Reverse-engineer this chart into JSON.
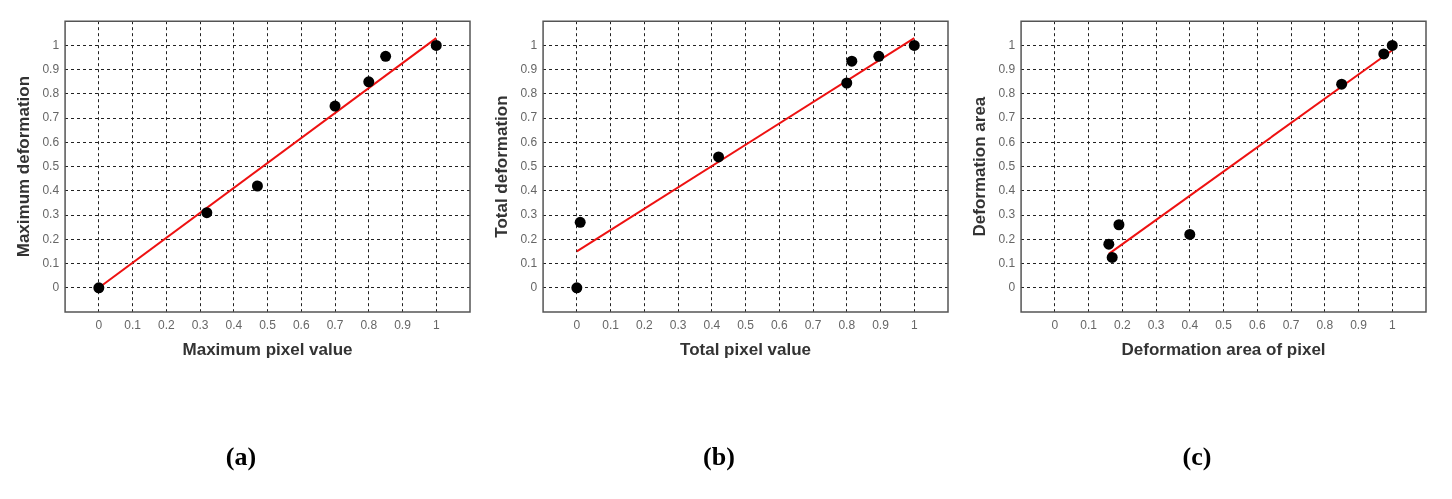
{
  "chart_data": [
    {
      "type": "scatter",
      "title": "(a)",
      "xlabel": "Maximum pixel value",
      "ylabel": "Maximum deformation",
      "xlim": [
        -0.1,
        1.1
      ],
      "ylim": [
        -0.1,
        1.1
      ],
      "xticks": [
        0,
        0.1,
        0.2,
        0.3,
        0.4,
        0.5,
        0.6,
        0.7,
        0.8,
        0.9,
        1
      ],
      "yticks": [
        0,
        0.1,
        0.2,
        0.3,
        0.4,
        0.5,
        0.6,
        0.7,
        0.8,
        0.9,
        1
      ],
      "grid": true,
      "legend": false,
      "series": [
        {
          "color": "#000000",
          "marker": "circle",
          "x": [
            0,
            0.32,
            0.47,
            0.7,
            0.8,
            0.85,
            1
          ],
          "values": [
            0,
            0.31,
            0.42,
            0.75,
            0.85,
            0.955,
            1
          ]
        },
        {
          "type": "line",
          "color": "#ee1111",
          "marker": "none",
          "line_style": "solid",
          "x": [
            0,
            1
          ],
          "values": [
            0,
            1.03
          ]
        }
      ]
    },
    {
      "type": "scatter",
      "title": "(b)",
      "xlabel": "Total pixel value",
      "ylabel": "Total deformation",
      "xlim": [
        -0.1,
        1.1
      ],
      "ylim": [
        -0.1,
        1.1
      ],
      "xticks": [
        0,
        0.1,
        0.2,
        0.3,
        0.4,
        0.5,
        0.6,
        0.7,
        0.8,
        0.9,
        1
      ],
      "yticks": [
        0,
        0.1,
        0.2,
        0.3,
        0.4,
        0.5,
        0.6,
        0.7,
        0.8,
        0.9,
        1
      ],
      "grid": true,
      "legend": false,
      "series": [
        {
          "color": "#000000",
          "marker": "circle",
          "x": [
            0,
            0.01,
            0.42,
            0.8,
            0.815,
            0.895,
            1
          ],
          "values": [
            0,
            0.27,
            0.54,
            0.845,
            0.935,
            0.955,
            1
          ]
        },
        {
          "type": "line",
          "color": "#ee1111",
          "marker": "none",
          "line_style": "solid",
          "x": [
            0,
            1
          ],
          "values": [
            0.15,
            1.03
          ]
        }
      ]
    },
    {
      "type": "scatter",
      "title": "(c)",
      "xlabel": "Deformation area of pixel",
      "ylabel": "Deformation area",
      "xlim": [
        -0.1,
        1.1
      ],
      "ylim": [
        -0.1,
        1.1
      ],
      "xticks": [
        0,
        0.1,
        0.2,
        0.3,
        0.4,
        0.5,
        0.6,
        0.7,
        0.8,
        0.9,
        1
      ],
      "yticks": [
        0,
        0.1,
        0.2,
        0.3,
        0.4,
        0.5,
        0.6,
        0.7,
        0.8,
        0.9,
        1
      ],
      "grid": true,
      "legend": false,
      "series": [
        {
          "color": "#000000",
          "marker": "circle",
          "x": [
            0.16,
            0.17,
            0.19,
            0.4,
            0.85,
            0.975,
            1
          ],
          "values": [
            0.18,
            0.125,
            0.26,
            0.22,
            0.84,
            0.965,
            1
          ]
        },
        {
          "type": "line",
          "color": "#ee1111",
          "marker": "none",
          "line_style": "solid",
          "x": [
            0.16,
            1
          ],
          "values": [
            0.14,
            0.98
          ]
        }
      ]
    }
  ]
}
